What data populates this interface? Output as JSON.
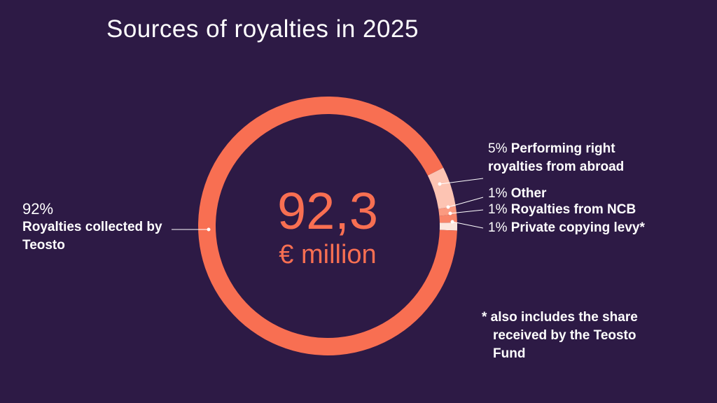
{
  "chart_data": {
    "type": "pie",
    "title": "Sources of royalties in 2025",
    "categories": [
      "Royalties collected by Teosto",
      "Performing right royalties from abroad",
      "Other",
      "Royalties from NCB",
      "Private copying levy*"
    ],
    "values": [
      92,
      5,
      1,
      1,
      1
    ],
    "value_labels": [
      "92%",
      "5%",
      "1%",
      "1%",
      "1%"
    ],
    "colors": [
      "#f86f52",
      "#fdc4b3",
      "#fb9a80",
      "#f98468",
      "#fde6dd"
    ],
    "donut": true,
    "center_text": "92,3",
    "center_unit": "€ million",
    "footnote": "* also includes the share received by the Teosto Fund"
  }
}
